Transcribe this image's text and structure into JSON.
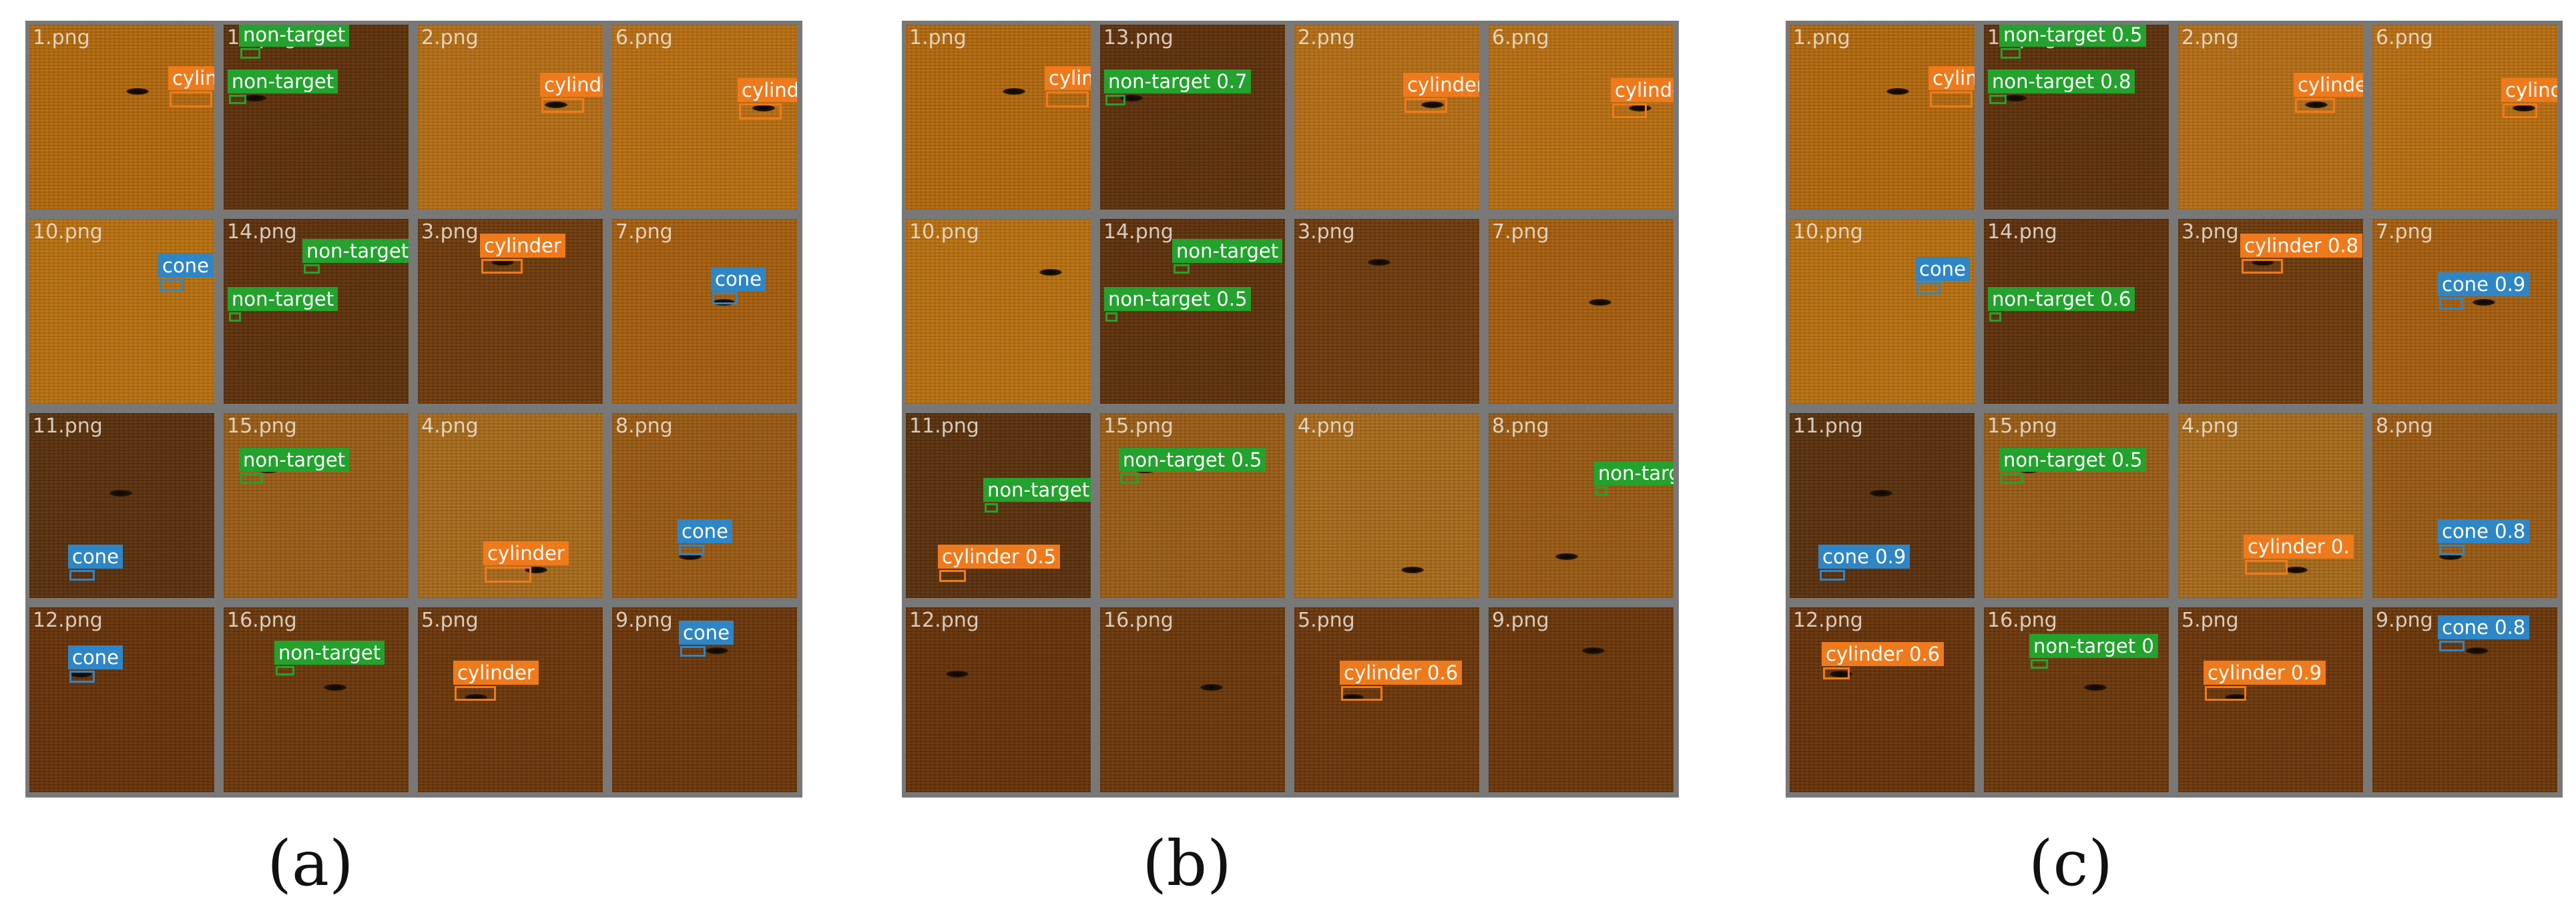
{
  "tile_names": [
    "1.png",
    "13.png",
    "2.png",
    "6.png",
    "10.png",
    "14.png",
    "3.png",
    "7.png",
    "11.png",
    "15.png",
    "4.png",
    "8.png",
    "12.png",
    "16.png",
    "5.png",
    "9.png"
  ],
  "tile_colors": [
    "#b2680c",
    "#5e300a",
    "#b56e14",
    "#b86e10",
    "#b8700e",
    "#5e300a",
    "#6e3a0b",
    "#a65e0c",
    "#5a300c",
    "#9a5d15",
    "#a86a1a",
    "#9a5a12",
    "#663208",
    "#6b370a",
    "#6b360a",
    "#6a3608"
  ],
  "class_colors": {
    "cone": "#2f86c6",
    "cylinder": "#ef7a1c",
    "non-target": "#23a22d"
  },
  "panels": [
    {
      "caption": "(a)",
      "tiles": [
        {
          "detections": [
            {
              "cls": "cylinder",
              "text": "cylinder"
            }
          ]
        },
        {
          "detections": [
            {
              "cls": "non-target",
              "text": "non-target"
            },
            {
              "cls": "non-target",
              "text": "non-target"
            }
          ]
        },
        {
          "detections": [
            {
              "cls": "cylinder",
              "text": "cylinder"
            }
          ]
        },
        {
          "detections": [
            {
              "cls": "cylinder",
              "text": "cylinder"
            }
          ]
        },
        {
          "detections": [
            {
              "cls": "cone",
              "text": "cone"
            }
          ]
        },
        {
          "detections": [
            {
              "cls": "non-target",
              "text": "non-target"
            },
            {
              "cls": "non-target",
              "text": "non-target"
            }
          ]
        },
        {
          "detections": [
            {
              "cls": "cylinder",
              "text": "cylinder"
            }
          ]
        },
        {
          "detections": [
            {
              "cls": "cone",
              "text": "cone"
            }
          ]
        },
        {
          "detections": [
            {
              "cls": "cone",
              "text": "cone"
            }
          ]
        },
        {
          "detections": [
            {
              "cls": "non-target",
              "text": "non-target"
            }
          ]
        },
        {
          "detections": [
            {
              "cls": "cylinder",
              "text": "cylinder"
            }
          ]
        },
        {
          "detections": [
            {
              "cls": "cone",
              "text": "cone"
            }
          ]
        },
        {
          "detections": [
            {
              "cls": "cone",
              "text": "cone"
            }
          ]
        },
        {
          "detections": [
            {
              "cls": "non-target",
              "text": "non-target"
            }
          ]
        },
        {
          "detections": [
            {
              "cls": "cylinder",
              "text": "cylinder"
            }
          ]
        },
        {
          "detections": [
            {
              "cls": "cone",
              "text": "cone"
            }
          ]
        }
      ]
    },
    {
      "caption": "(b)",
      "tiles": [
        {
          "detections": [
            {
              "cls": "cylinder",
              "text": "cylinder"
            }
          ]
        },
        {
          "detections": [
            {
              "cls": "non-target",
              "text": "non-target 0.7"
            }
          ]
        },
        {
          "detections": [
            {
              "cls": "cylinder",
              "text": "cylinder"
            }
          ]
        },
        {
          "detections": [
            {
              "cls": "cylinder",
              "text": "cylinder"
            }
          ]
        },
        {
          "detections": []
        },
        {
          "detections": [
            {
              "cls": "non-target",
              "text": "non-target"
            },
            {
              "cls": "non-target",
              "text": "non-target 0.5"
            }
          ]
        },
        {
          "detections": []
        },
        {
          "detections": []
        },
        {
          "detections": [
            {
              "cls": "non-target",
              "text": "non-target"
            },
            {
              "cls": "cylinder",
              "text": "cylinder 0.5"
            }
          ]
        },
        {
          "detections": [
            {
              "cls": "non-target",
              "text": "non-target 0.5"
            }
          ]
        },
        {
          "detections": []
        },
        {
          "detections": [
            {
              "cls": "non-target",
              "text": "non-target"
            }
          ]
        },
        {
          "detections": []
        },
        {
          "detections": []
        },
        {
          "detections": [
            {
              "cls": "cylinder",
              "text": "cylinder 0.6"
            }
          ]
        },
        {
          "detections": []
        }
      ]
    },
    {
      "caption": "(c)",
      "tiles": [
        {
          "detections": [
            {
              "cls": "cylinder",
              "text": "cylinder"
            }
          ]
        },
        {
          "detections": [
            {
              "cls": "non-target",
              "text": "non-target 0.5"
            },
            {
              "cls": "non-target",
              "text": "non-target 0.8"
            }
          ]
        },
        {
          "detections": [
            {
              "cls": "cylinder",
              "text": "cylinder"
            }
          ]
        },
        {
          "detections": [
            {
              "cls": "cylinder",
              "text": "cylinder"
            }
          ]
        },
        {
          "detections": [
            {
              "cls": "cone",
              "text": "cone"
            }
          ]
        },
        {
          "detections": [
            {
              "cls": "non-target",
              "text": "non-target 0.6"
            }
          ]
        },
        {
          "detections": [
            {
              "cls": "cylinder",
              "text": "cylinder 0.8"
            }
          ]
        },
        {
          "detections": [
            {
              "cls": "cone",
              "text": "cone 0.9"
            }
          ]
        },
        {
          "detections": [
            {
              "cls": "cone",
              "text": "cone 0.9"
            }
          ]
        },
        {
          "detections": [
            {
              "cls": "non-target",
              "text": "non-target 0.5"
            }
          ]
        },
        {
          "detections": [
            {
              "cls": "cylinder",
              "text": "cylinder 0."
            }
          ]
        },
        {
          "detections": [
            {
              "cls": "cone",
              "text": "cone 0.8"
            }
          ]
        },
        {
          "detections": [
            {
              "cls": "cylinder",
              "text": "cylinder 0.6"
            }
          ]
        },
        {
          "detections": [
            {
              "cls": "non-target",
              "text": "non-target 0"
            }
          ]
        },
        {
          "detections": [
            {
              "cls": "cylinder",
              "text": "cylinder 0.9"
            }
          ]
        },
        {
          "detections": [
            {
              "cls": "cone",
              "text": "cone 0.8"
            }
          ]
        }
      ]
    }
  ]
}
